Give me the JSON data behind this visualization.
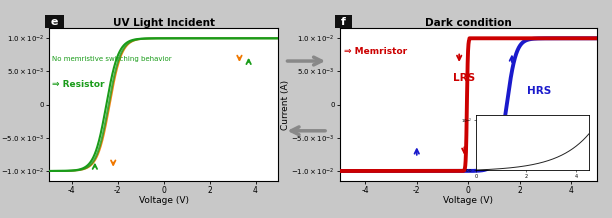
{
  "title_e": "UV Light Incident",
  "title_f": "Dark condition",
  "xlabel": "Voltage (V)",
  "ylabel": "Current (A)",
  "xlim": [
    -5,
    5
  ],
  "ylim": [
    -0.0115,
    0.0115
  ],
  "yticks": [
    -0.01,
    -0.005,
    0.0,
    0.005,
    0.01
  ],
  "xticks": [
    -4,
    -2,
    0,
    2,
    4
  ],
  "color_green": "#1a9c1a",
  "color_orange": "#f07800",
  "color_red": "#cc0000",
  "color_blue": "#1a1acc",
  "bg_color": "#c8c8c8",
  "panel_bg": "#ffffff",
  "label_e": "e",
  "label_f": "f",
  "annotation_e_line1": "No memristive switching behavior",
  "annotation_e_line2": "⇒ Resistor",
  "annotation_f": "⇒ Memristor",
  "lrs_label": "LRS",
  "hrs_label": "HRS",
  "fig_width": 6.12,
  "fig_height": 2.18,
  "dpi": 100
}
